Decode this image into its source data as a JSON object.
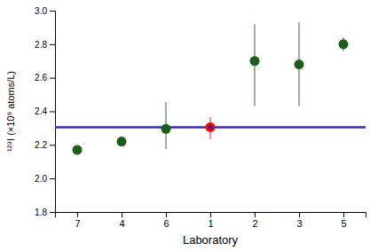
{
  "chart_data": {
    "type": "scatter",
    "xlabel": "Laboratory",
    "ylabel": "¹²⁹I (×10⁸ atoms/L)",
    "categories": [
      "7",
      "4",
      "6",
      "1",
      "2",
      "3",
      "5"
    ],
    "values": [
      2.17,
      2.22,
      2.295,
      2.305,
      2.7,
      2.68,
      2.8
    ],
    "errors_up": [
      0.0,
      0.0,
      0.16,
      0.06,
      0.22,
      0.25,
      0.04
    ],
    "errors_down": [
      0.0,
      0.0,
      0.12,
      0.07,
      0.27,
      0.25,
      0.04
    ],
    "colors": [
      "#1a5e1a",
      "#1a5e1a",
      "#1a5e1a",
      "#ff0000",
      "#1a5e1a",
      "#1a5e1a",
      "#1a5e1a"
    ],
    "marker": "circle",
    "reference_lines": [
      {
        "value": 2.305,
        "color": "#3333aa"
      }
    ],
    "highlight": {
      "category": "1",
      "value": 2.305,
      "color": "#2222aa"
    },
    "ylim": [
      1.8,
      3.0
    ],
    "yticks": [
      1.8,
      {
        "value": 2.0,
        "label": "2.0"
      },
      2.2,
      2.4,
      2.6,
      2.8,
      {
        "value": 3.0,
        "label": "3.0"
      }
    ],
    "grid": false
  }
}
